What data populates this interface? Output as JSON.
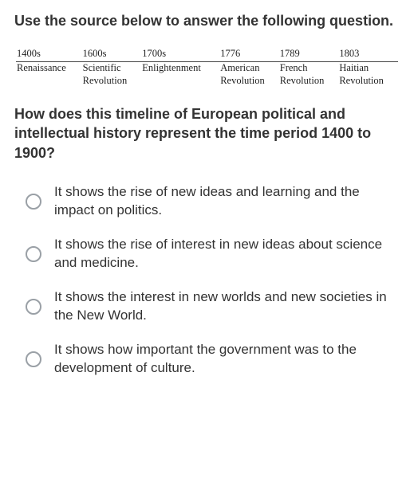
{
  "instruction": "Use the source below to answer the following question.",
  "timeline": {
    "font_family": "serif",
    "year_fontsize": 12.5,
    "label_fontsize": 12.5,
    "line_color": "#444444",
    "text_color": "#222222",
    "columns": [
      {
        "year": "1400s",
        "label_line1": "Renaissance",
        "label_line2": ""
      },
      {
        "year": "1600s",
        "label_line1": "Scientific",
        "label_line2": "Revolution"
      },
      {
        "year": "1700s",
        "label_line1": "Enlightenment",
        "label_line2": ""
      },
      {
        "year": "1776",
        "label_line1": "American",
        "label_line2": "Revolution"
      },
      {
        "year": "1789",
        "label_line1": "French",
        "label_line2": "Revolution"
      },
      {
        "year": "1803",
        "label_line1": "Haitian",
        "label_line2": "Revolution"
      }
    ]
  },
  "question": "How does this timeline of European political and intellectual history represent the time period 1400 to 1900?",
  "options": [
    "It shows the rise of new ideas and learning and the impact on politics.",
    "It shows the rise of interest in new ideas about science and medicine.",
    "It shows the interest in new worlds and new societies in the New World.",
    "It shows how important the government was to the development of culture."
  ],
  "colors": {
    "background": "#ffffff",
    "text": "#333333",
    "radio_border": "#9aa0a6"
  }
}
